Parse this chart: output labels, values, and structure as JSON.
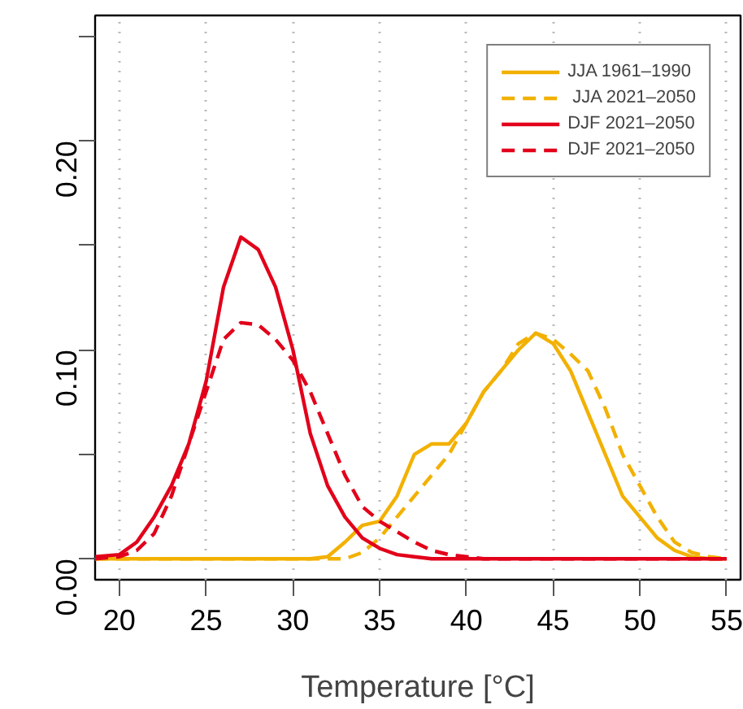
{
  "chart_data": {
    "type": "line",
    "xlabel": "Temperature [°C]",
    "xlim": [
      18.6,
      55.8
    ],
    "xticks": [
      20,
      25,
      30,
      35,
      40,
      45,
      50,
      55
    ],
    "ylim": [
      -0.01,
      0.26
    ],
    "yticks": [
      {
        "value": 0,
        "label": "0.00"
      },
      {
        "value": 0.05,
        "label": null
      },
      {
        "value": 0.1,
        "label": "0.10"
      },
      {
        "value": 0.15,
        "label": null
      },
      {
        "value": 0.2,
        "label": "0.20"
      },
      {
        "value": 0.25,
        "label": null
      }
    ],
    "grid": "x",
    "legend": "top right",
    "x": [
      18.6,
      20,
      21,
      22,
      23,
      24,
      25,
      26,
      27,
      28,
      29,
      30,
      31,
      32,
      33,
      34,
      35,
      36,
      37,
      38,
      39,
      40,
      41,
      42,
      43,
      44,
      45,
      46,
      47,
      48,
      49,
      50,
      51,
      52,
      53,
      54,
      55
    ],
    "series": [
      {
        "name": "JJA 1961–1990",
        "color": "#f2b100",
        "line_style": "solid",
        "values": [
          0,
          0,
          0,
          0,
          0,
          0,
          0,
          0,
          0,
          0,
          0,
          0,
          0,
          0.001,
          0.008,
          0.016,
          0.018,
          0.03,
          0.05,
          0.055,
          0.055,
          0.065,
          0.08,
          0.09,
          0.1,
          0.108,
          0.103,
          0.09,
          0.07,
          0.05,
          0.03,
          0.02,
          0.01,
          0.004,
          0.001,
          0,
          0
        ]
      },
      {
        "name": " JJA 2021–2050",
        "color": "#f2b100",
        "line_style": "dashed",
        "values": [
          0,
          0,
          0,
          0,
          0,
          0,
          0,
          0,
          0,
          0,
          0,
          0,
          0,
          0,
          0,
          0.003,
          0.01,
          0.02,
          0.03,
          0.04,
          0.05,
          0.065,
          0.08,
          0.09,
          0.103,
          0.108,
          0.105,
          0.098,
          0.09,
          0.072,
          0.05,
          0.035,
          0.02,
          0.008,
          0.003,
          0.001,
          0
        ]
      },
      {
        "name": "DJF 2021–2050",
        "color": "#e2001a",
        "line_style": "solid",
        "values": [
          0.001,
          0.002,
          0.008,
          0.02,
          0.035,
          0.055,
          0.085,
          0.13,
          0.154,
          0.148,
          0.13,
          0.1,
          0.06,
          0.035,
          0.02,
          0.01,
          0.005,
          0.002,
          0.001,
          0,
          0,
          0,
          0,
          0,
          0,
          0,
          0,
          0,
          0,
          0,
          0,
          0,
          0,
          0,
          0,
          0,
          0
        ]
      },
      {
        "name": "DJF 2021–2050",
        "color": "#e2001a",
        "line_style": "dashed",
        "values": [
          0,
          0.001,
          0.004,
          0.012,
          0.03,
          0.055,
          0.08,
          0.105,
          0.113,
          0.112,
          0.105,
          0.095,
          0.08,
          0.06,
          0.04,
          0.025,
          0.018,
          0.013,
          0.008,
          0.004,
          0.002,
          0.001,
          0,
          0,
          0,
          0,
          0,
          0,
          0,
          0,
          0,
          0,
          0,
          0,
          0,
          0,
          0
        ]
      }
    ]
  }
}
